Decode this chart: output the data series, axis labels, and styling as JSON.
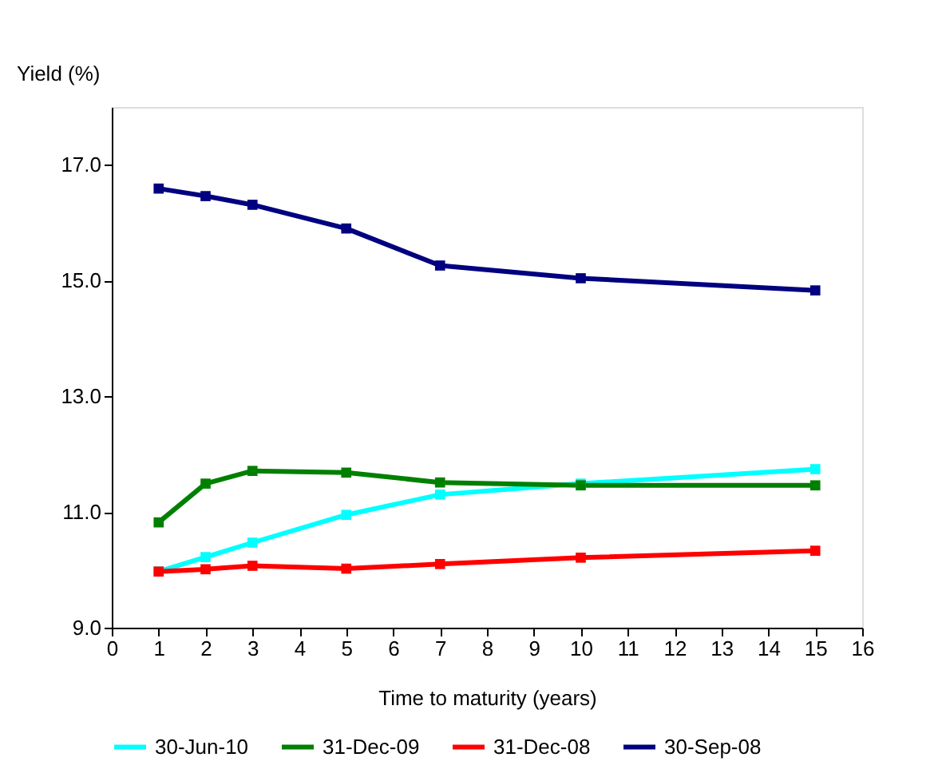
{
  "chart_data": {
    "type": "line",
    "xlabel": "Time to maturity (years)",
    "ylabel": "Yield (%)",
    "x": [
      1,
      2,
      3,
      5,
      7,
      10,
      15
    ],
    "series": [
      {
        "name": "30-Jun-10",
        "color": "#00ffff",
        "values": [
          9.97,
          10.22,
          10.47,
          10.95,
          11.3,
          11.49,
          11.74
        ]
      },
      {
        "name": "31-Dec-09",
        "color": "#008000",
        "values": [
          10.82,
          11.49,
          11.71,
          11.68,
          11.51,
          11.46,
          11.46
        ]
      },
      {
        "name": "31-Dec-08",
        "color": "#ff0000",
        "values": [
          9.97,
          10.01,
          10.07,
          10.02,
          10.1,
          10.21,
          10.33
        ]
      },
      {
        "name": "30-Sep-08",
        "color": "#000080",
        "values": [
          16.59,
          16.46,
          16.31,
          15.9,
          15.26,
          15.04,
          14.83
        ]
      }
    ],
    "xlim": [
      0,
      16
    ],
    "xticks": [
      0,
      1,
      2,
      3,
      4,
      5,
      6,
      7,
      8,
      9,
      10,
      11,
      12,
      13,
      14,
      15,
      16
    ],
    "ylim": [
      9,
      18
    ],
    "yticks": [
      {
        "value": 9,
        "label": "9.0"
      },
      {
        "value": 11,
        "label": "11.0"
      },
      {
        "value": 13,
        "label": "13.0"
      },
      {
        "value": 15,
        "label": "15.0"
      },
      {
        "value": 17,
        "label": "17.0"
      }
    ],
    "grid": false,
    "legend": "bottom",
    "marker": "square",
    "line_style": "solid"
  }
}
